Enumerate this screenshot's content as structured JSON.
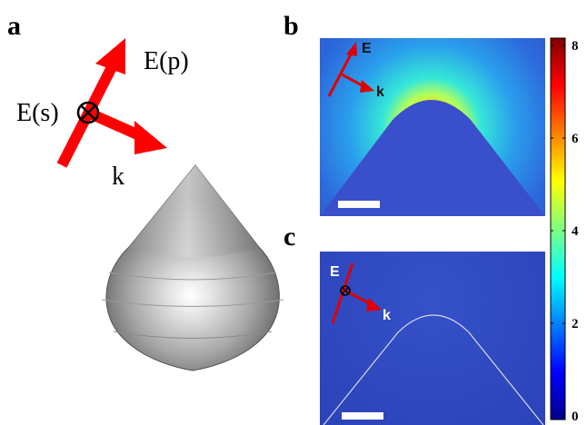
{
  "panels": {
    "a": "a",
    "b": "b",
    "c": "c"
  },
  "panel_a": {
    "label_ep": "E(p)",
    "label_es": "E(s)",
    "label_k": "k",
    "arrow_color": "#ff0000"
  },
  "panel_b": {
    "label_e": "E",
    "label_k": "k"
  },
  "panel_c": {
    "label_e": "E",
    "label_k": "k"
  },
  "colorbar": {
    "ticks": [
      "8",
      "6",
      "4",
      "2",
      "0"
    ],
    "min": 0,
    "max": 8,
    "colormap": "jet"
  }
}
